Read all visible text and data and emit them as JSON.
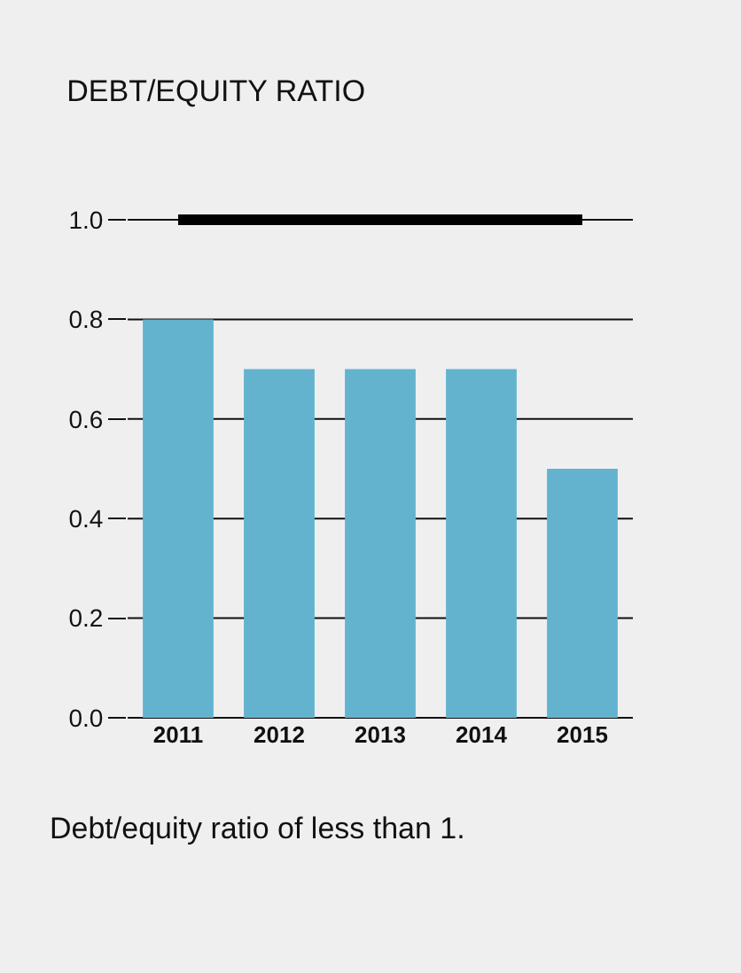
{
  "chart_data": {
    "type": "bar",
    "title": "DEBT/EQUITY RATIO",
    "categories": [
      "2011",
      "2012",
      "2013",
      "2014",
      "2015"
    ],
    "values": [
      0.8,
      0.7,
      0.7,
      0.7,
      0.5
    ],
    "color": "#63b3cf",
    "ylim": [
      0,
      1
    ],
    "yticks": [
      {
        "value": 0,
        "label": "0.0"
      },
      {
        "value": 0.2,
        "label": "0.2"
      },
      {
        "value": 0.4,
        "label": "0.4"
      },
      {
        "value": 0.6,
        "label": "0.6"
      },
      {
        "value": 0.8,
        "label": "0.8"
      },
      {
        "value": 1,
        "label": "1.0"
      }
    ],
    "grid": "y",
    "ref_lines": [
      {
        "axis": "y",
        "value": 1,
        "color": "#000000",
        "line_style": "solid"
      }
    ],
    "annotations": [
      "Debt/equity ratio of less than 1."
    ]
  }
}
